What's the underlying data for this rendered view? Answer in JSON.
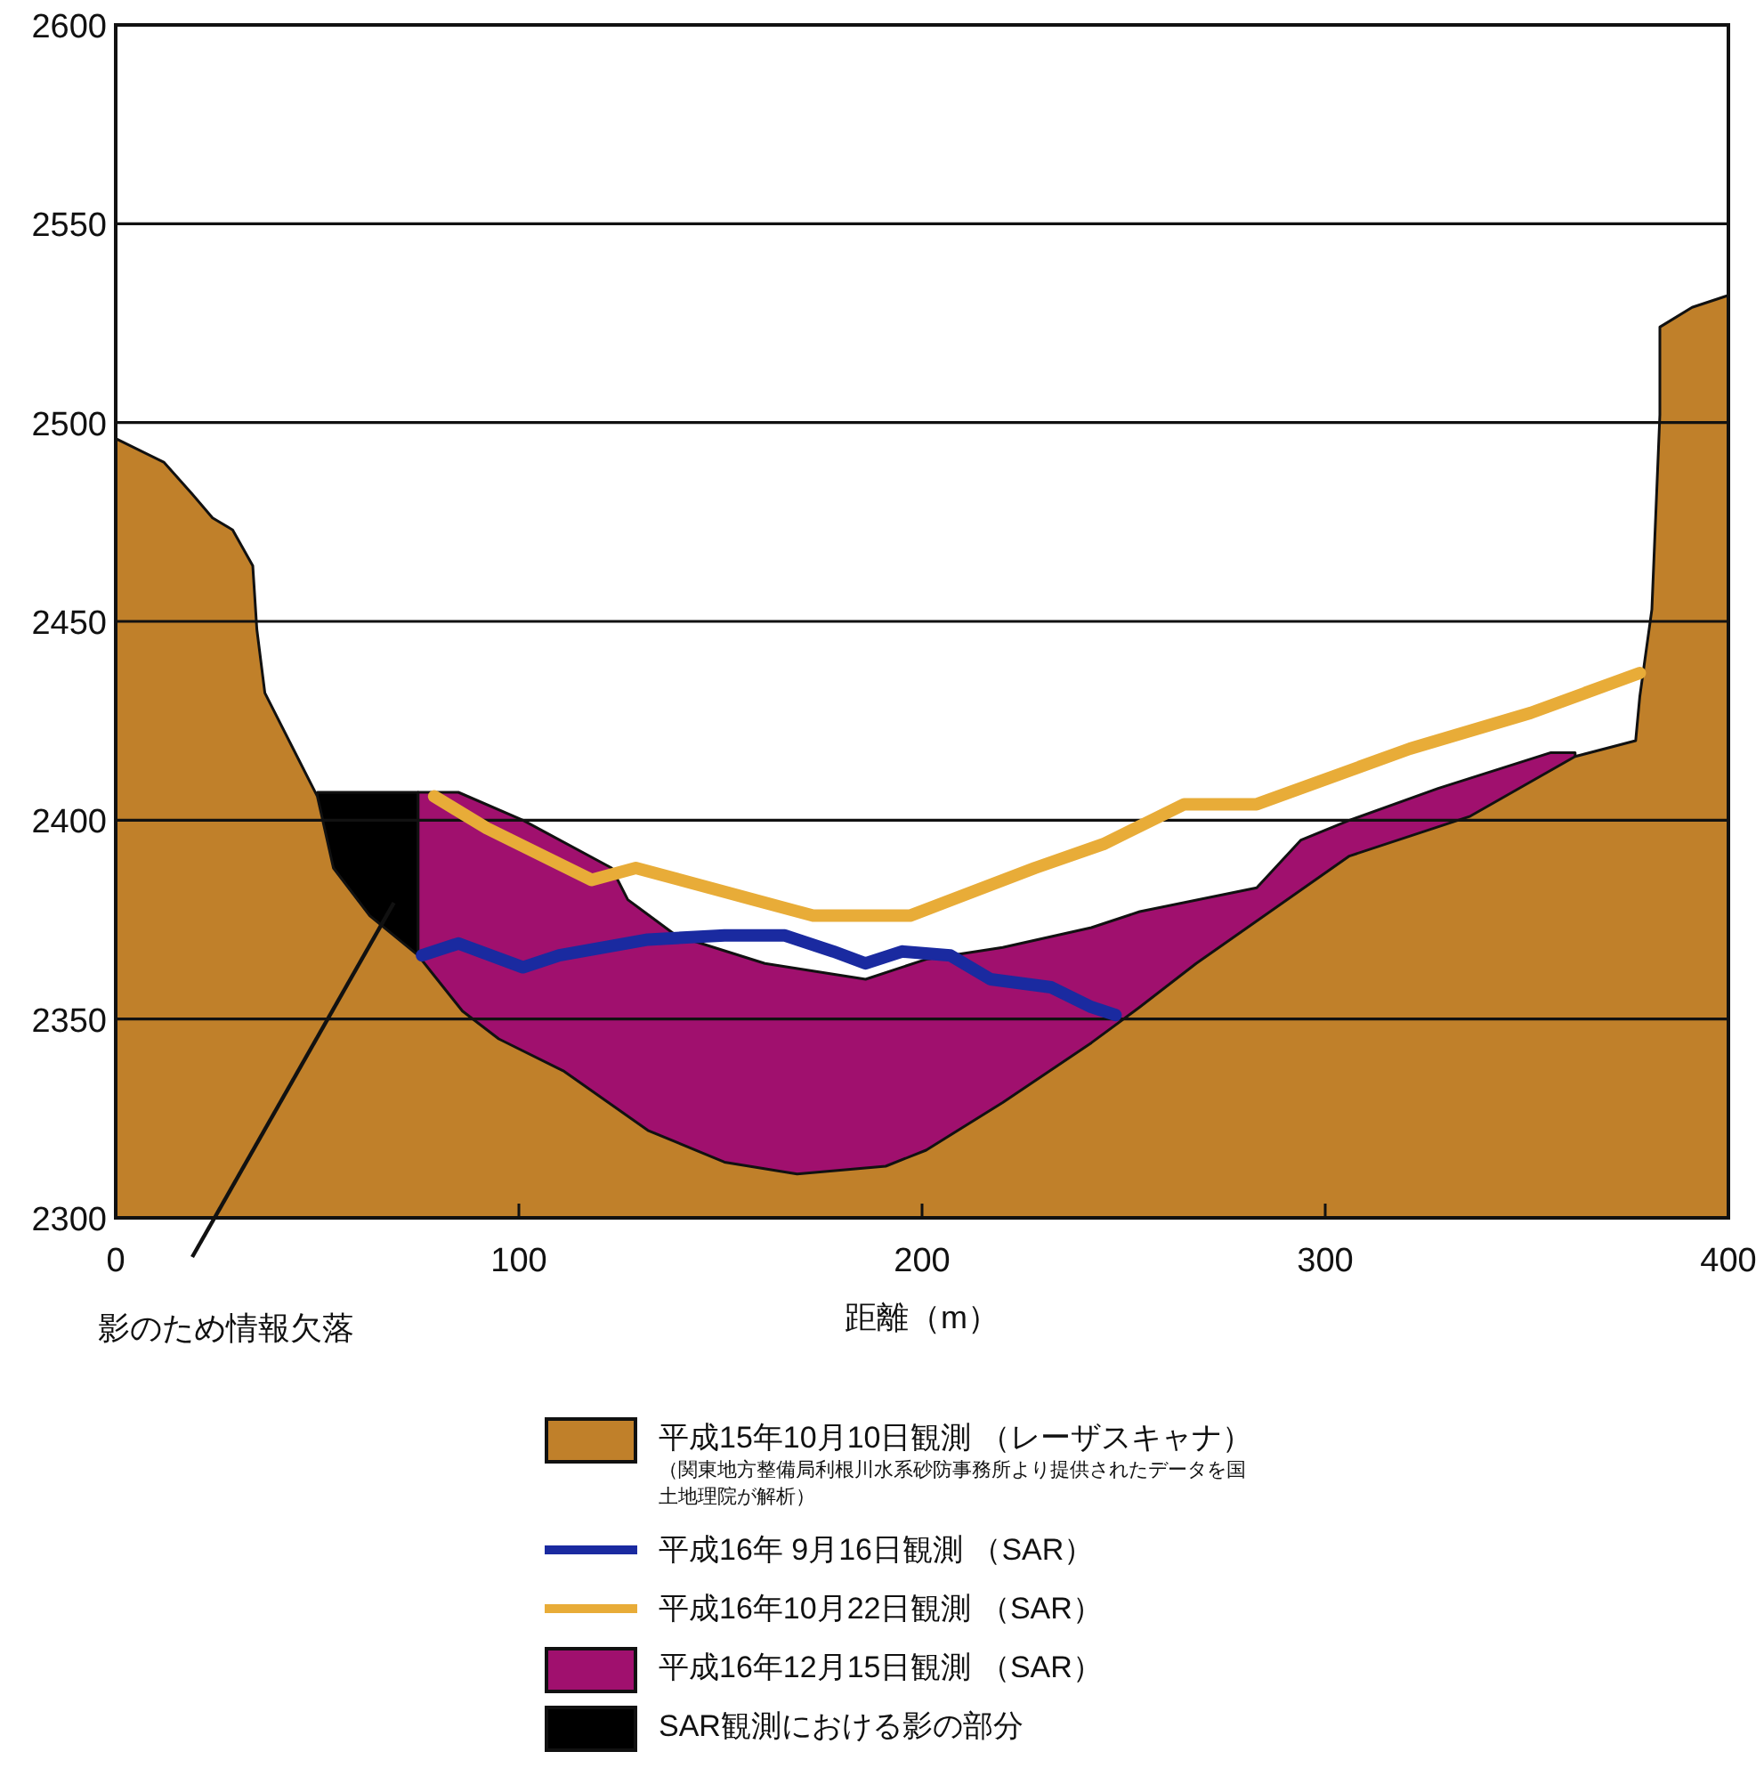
{
  "chart_data": {
    "type": "area",
    "xlabel": "距離（m）",
    "xlim": [
      0,
      400
    ],
    "ylim": [
      2300,
      2600
    ],
    "xticks": [
      0,
      100,
      200,
      300,
      400
    ],
    "yticks": [
      2300,
      2350,
      2400,
      2450,
      2500,
      2550,
      2600
    ],
    "grid": "y",
    "legend": "bottom",
    "line_style": "solid",
    "series": [
      {
        "name": "平成15年10月10日観測 （レーザスキャナ）",
        "color": "#c0802a",
        "x": [
          0,
          12,
          19,
          24,
          29,
          34,
          35,
          37,
          45,
          50,
          54,
          63,
          75,
          86,
          95,
          111,
          132,
          151,
          169,
          191,
          201,
          220,
          242,
          254,
          268,
          306,
          336,
          362,
          377,
          378,
          381,
          383,
          383,
          391,
          400
        ],
        "values": [
          2496,
          2490,
          2482,
          2476,
          2473,
          2464,
          2448,
          2432,
          2416,
          2406,
          2388,
          2376,
          2366,
          2352,
          2345,
          2337,
          2322,
          2314,
          2311,
          2313,
          2317,
          2329,
          2344,
          2353,
          2364,
          2391,
          2401,
          2416,
          2420,
          2431,
          2453,
          2502,
          2524,
          2529,
          2532
        ]
      },
      {
        "name": "平成16年 9月16日観測 （SAR）",
        "type": "line",
        "color": "#1a2aa0",
        "x": [
          76,
          85,
          101,
          110,
          132,
          151,
          166,
          178,
          186,
          195,
          207,
          217,
          232,
          242,
          248
        ],
        "values": [
          2366,
          2369,
          2363,
          2366,
          2370,
          2371,
          2371,
          2367,
          2364,
          2367,
          2366,
          2360,
          2358,
          2353,
          2351
        ]
      },
      {
        "name": "平成16年10月22日観測 （SAR）",
        "type": "line",
        "color": "#e8ac38",
        "x": [
          79,
          92,
          118,
          129,
          151,
          173,
          197,
          228,
          245,
          265,
          283,
          321,
          351,
          378
        ],
        "values": [
          2406,
          2398,
          2385,
          2388,
          2382,
          2376,
          2376,
          2388,
          2394,
          2404,
          2404,
          2418,
          2427,
          2437
        ]
      },
      {
        "name": "平成16年12月15日観測 （SAR）",
        "color": "#a0106e",
        "x": [
          75,
          85,
          101,
          123,
          127,
          139,
          161,
          186,
          201,
          220,
          242,
          254,
          283,
          294,
          306,
          328,
          356,
          362
        ],
        "values": [
          2407,
          2407,
          2400,
          2388,
          2380,
          2371,
          2364,
          2360,
          2365,
          2368,
          2373,
          2377,
          2383,
          2395,
          2400,
          2408,
          2417,
          2417
        ]
      },
      {
        "name": "SAR観測における影の部分",
        "color": "#000000",
        "x": [
          50,
          54,
          63,
          75
        ],
        "values": [
          2407,
          2407,
          2407,
          2407
        ]
      }
    ],
    "annotations": [
      "影のため情報欠落",
      "（関東地方整備局利根川水系砂防事務所より提供されたデータを国土地理院が解析）"
    ]
  }
}
